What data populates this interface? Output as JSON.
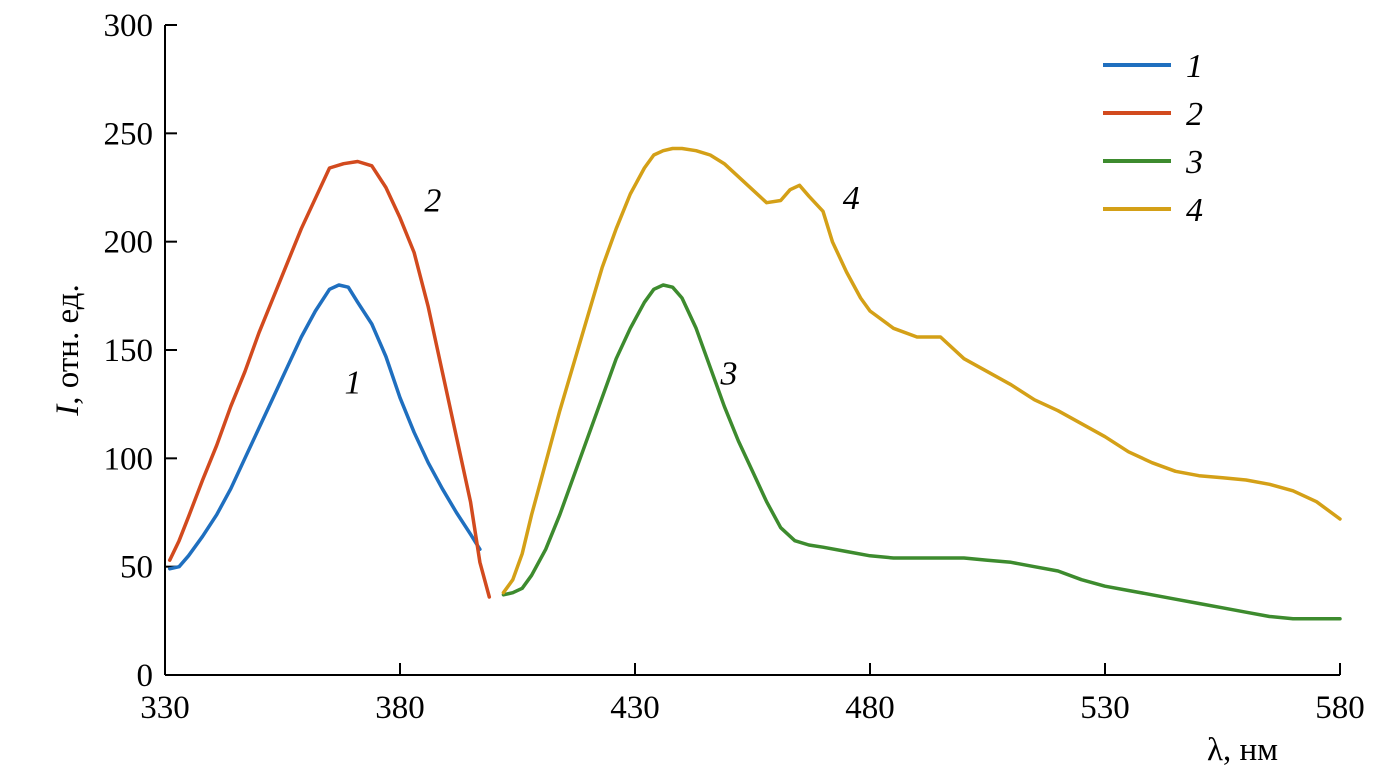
{
  "chart_data": {
    "type": "line",
    "xlabel": "λ, нм",
    "ylabel_italic": "I",
    "ylabel_rest": ", отн. ед.",
    "xlim": [
      330,
      580
    ],
    "ylim": [
      0,
      300
    ],
    "xticks": [
      330,
      380,
      430,
      480,
      530,
      580
    ],
    "yticks": [
      0,
      50,
      100,
      150,
      200,
      250,
      300
    ],
    "grid": false,
    "legend_position": "top-right",
    "series": [
      {
        "name": "1",
        "color": "#1f6fbf",
        "label_at": [
          370,
          130
        ],
        "x": [
          331,
          333,
          335,
          338,
          341,
          344,
          347,
          350,
          353,
          356,
          359,
          362,
          365,
          367,
          369,
          371,
          374,
          377,
          380,
          383,
          386,
          389,
          392,
          395,
          397
        ],
        "y": [
          49,
          50,
          55,
          64,
          74,
          86,
          100,
          114,
          128,
          142,
          156,
          168,
          178,
          180,
          179,
          172,
          162,
          147,
          128,
          112,
          98,
          86,
          75,
          65,
          58
        ]
      },
      {
        "name": "2",
        "color": "#d24a1e",
        "label_at": [
          387,
          214
        ],
        "x": [
          331,
          333,
          335,
          338,
          341,
          344,
          347,
          350,
          353,
          356,
          359,
          362,
          365,
          368,
          371,
          374,
          377,
          380,
          383,
          386,
          389,
          392,
          395,
          397,
          399
        ],
        "y": [
          53,
          62,
          73,
          90,
          106,
          124,
          140,
          158,
          174,
          190,
          206,
          220,
          234,
          236,
          237,
          235,
          225,
          211,
          195,
          170,
          140,
          110,
          80,
          52,
          36
        ]
      },
      {
        "name": "3",
        "color": "#3d8b2e",
        "label_at": [
          450,
          134
        ],
        "x": [
          402,
          404,
          406,
          408,
          411,
          414,
          417,
          420,
          423,
          426,
          429,
          432,
          434,
          436,
          438,
          440,
          443,
          446,
          449,
          452,
          455,
          458,
          461,
          464,
          467,
          470,
          475,
          480,
          485,
          490,
          495,
          500,
          505,
          510,
          515,
          520,
          525,
          530,
          535,
          540,
          545,
          550,
          555,
          560,
          565,
          570,
          575,
          580
        ],
        "y": [
          37,
          38,
          40,
          46,
          58,
          74,
          92,
          110,
          128,
          146,
          160,
          172,
          178,
          180,
          179,
          174,
          160,
          142,
          124,
          108,
          94,
          80,
          68,
          62,
          60,
          59,
          57,
          55,
          54,
          54,
          54,
          54,
          53,
          52,
          50,
          48,
          44,
          41,
          39,
          37,
          35,
          33,
          31,
          29,
          27,
          26,
          26,
          26
        ]
      },
      {
        "name": "4",
        "color": "#d4a017",
        "label_at": [
          476,
          215
        ],
        "x": [
          402,
          404,
          406,
          408,
          411,
          414,
          417,
          420,
          423,
          426,
          429,
          432,
          434,
          436,
          438,
          440,
          443,
          446,
          449,
          452,
          455,
          458,
          461,
          463,
          465,
          467,
          470,
          472,
          475,
          478,
          480,
          485,
          490,
          495,
          500,
          505,
          510,
          515,
          520,
          525,
          530,
          535,
          540,
          545,
          550,
          555,
          560,
          565,
          570,
          575,
          580
        ],
        "y": [
          38,
          44,
          56,
          74,
          98,
          122,
          144,
          166,
          188,
          206,
          222,
          234,
          240,
          242,
          243,
          243,
          242,
          240,
          236,
          230,
          224,
          218,
          219,
          224,
          226,
          221,
          214,
          200,
          186,
          174,
          168,
          160,
          156,
          156,
          146,
          140,
          134,
          127,
          122,
          116,
          110,
          103,
          98,
          94,
          92,
          91,
          90,
          88,
          85,
          80,
          72
        ]
      }
    ]
  }
}
